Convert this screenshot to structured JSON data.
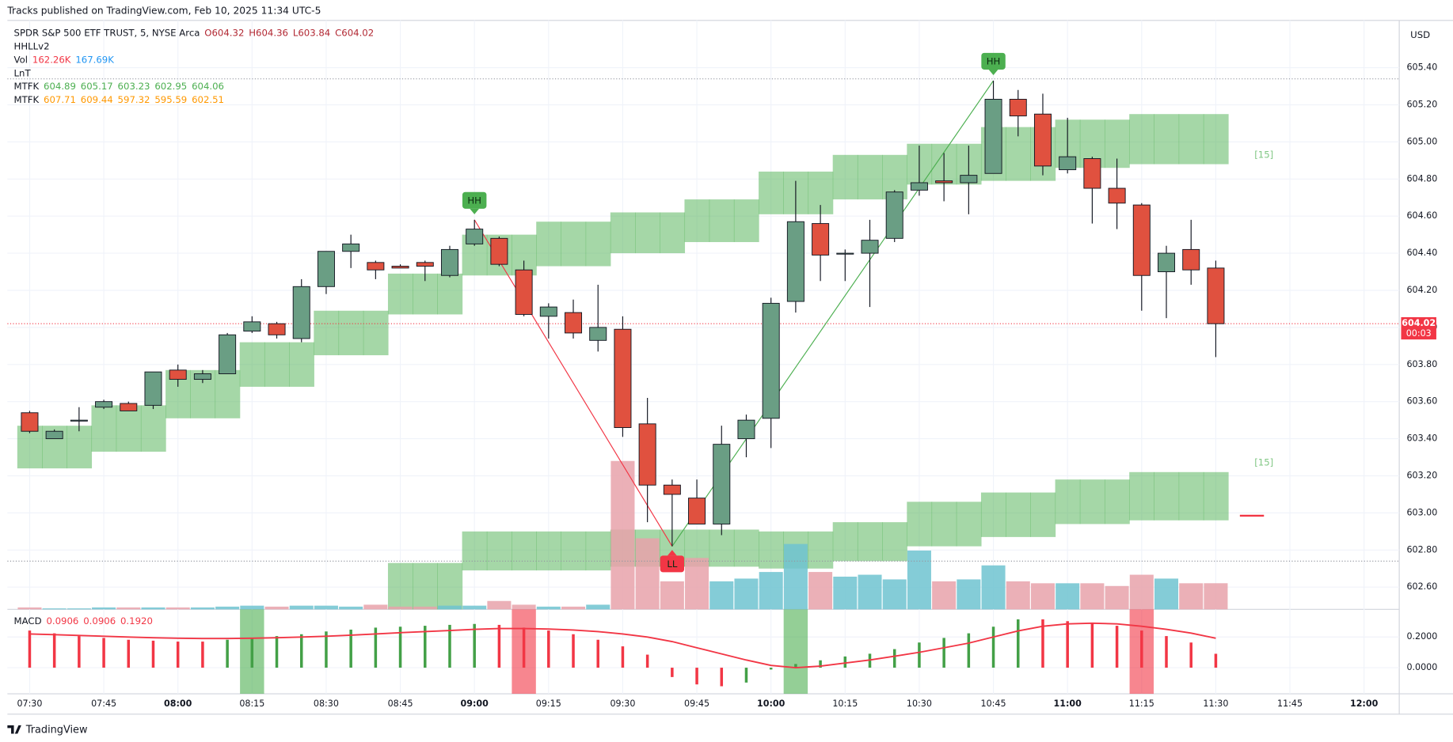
{
  "chart_data": {
    "type": "candlestick",
    "title": "Tracks published on TradingView.com, Feb 10, 2025 11:34 UTC-5",
    "currency": "USD",
    "branding": "TradingView",
    "legend": [
      {
        "name": "SPDR S&P 500 ETF TRUST, 5, NYSE Arca",
        "values": [
          "O604.32",
          "H604.36",
          "L603.84",
          "C604.02"
        ],
        "colors": [
          "#b22833",
          "#b22833",
          "#b22833",
          "#b22833"
        ]
      },
      {
        "name": "HHLLv2"
      },
      {
        "name": "Vol",
        "values": [
          "162.26K",
          "167.69K"
        ],
        "colors": [
          "#f23645",
          "#2196f3"
        ]
      },
      {
        "name": "LnT"
      },
      {
        "name": "MTFK",
        "values": [
          "604.89",
          "605.17",
          "603.23",
          "602.95",
          "604.06"
        ],
        "colors": [
          "#4caf50",
          "#4caf50",
          "#4caf50",
          "#4caf50",
          "#4caf50"
        ]
      },
      {
        "name": "MTFK",
        "values": [
          "607.71",
          "609.44",
          "597.32",
          "595.59",
          "602.51"
        ],
        "colors": [
          "#ff9800",
          "#ff9800",
          "#ff9800",
          "#ff9800",
          "#ff9800"
        ]
      }
    ],
    "categories": [
      "07:30",
      "07:35",
      "07:40",
      "07:45",
      "07:50",
      "07:55",
      "08:00",
      "08:05",
      "08:10",
      "08:15",
      "08:20",
      "08:25",
      "08:30",
      "08:35",
      "08:40",
      "08:45",
      "08:50",
      "08:55",
      "09:00",
      "09:05",
      "09:10",
      "09:15",
      "09:20",
      "09:25",
      "09:30",
      "09:35",
      "09:40",
      "09:45",
      "09:50",
      "09:55",
      "10:00",
      "10:05",
      "10:10",
      "10:15",
      "10:20",
      "10:25",
      "10:30",
      "10:35",
      "10:40",
      "10:45",
      "10:50",
      "10:55",
      "11:00",
      "11:05",
      "11:10",
      "11:15",
      "11:20",
      "11:25",
      "11:30"
    ],
    "open": [
      603.54,
      603.4,
      603.5,
      603.57,
      603.59,
      603.58,
      603.77,
      603.72,
      603.75,
      603.98,
      604.02,
      603.94,
      604.22,
      604.41,
      604.35,
      604.33,
      604.35,
      604.28,
      604.45,
      604.48,
      604.31,
      604.06,
      604.08,
      603.93,
      603.99,
      603.48,
      603.15,
      603.08,
      602.94,
      603.4,
      603.51,
      604.14,
      604.56,
      604.4,
      604.4,
      604.48,
      604.74,
      604.79,
      604.78,
      604.83,
      605.23,
      605.15,
      604.85,
      604.91,
      604.75,
      604.66,
      604.3,
      604.42,
      604.32
    ],
    "high": [
      603.55,
      603.45,
      603.57,
      603.61,
      603.6,
      603.76,
      603.8,
      603.77,
      603.97,
      604.06,
      604.03,
      604.26,
      604.41,
      604.5,
      604.36,
      604.34,
      604.36,
      604.44,
      604.58,
      604.49,
      604.36,
      604.13,
      604.15,
      604.23,
      604.06,
      603.62,
      603.18,
      603.18,
      603.47,
      603.53,
      604.16,
      604.79,
      604.66,
      604.42,
      604.58,
      604.74,
      604.98,
      604.94,
      604.98,
      605.33,
      605.28,
      605.26,
      605.13,
      604.92,
      604.91,
      604.67,
      604.44,
      604.58,
      604.36
    ],
    "low": [
      603.43,
      603.4,
      603.44,
      603.56,
      603.55,
      603.56,
      603.68,
      603.7,
      603.75,
      603.97,
      603.94,
      603.92,
      604.18,
      604.32,
      604.26,
      604.32,
      604.25,
      604.27,
      604.44,
      604.33,
      604.06,
      603.94,
      603.94,
      603.87,
      603.41,
      602.95,
      602.82,
      602.94,
      602.88,
      603.3,
      603.35,
      604.08,
      604.25,
      604.25,
      604.11,
      604.46,
      604.71,
      604.68,
      604.61,
      604.83,
      605.03,
      604.82,
      604.83,
      604.56,
      604.53,
      604.09,
      604.05,
      604.23,
      603.84
    ],
    "close": [
      603.44,
      603.44,
      603.5,
      603.6,
      603.55,
      603.76,
      603.72,
      603.75,
      603.96,
      604.03,
      603.96,
      604.22,
      604.41,
      604.45,
      604.31,
      604.32,
      604.33,
      604.42,
      604.53,
      604.34,
      604.07,
      604.11,
      603.97,
      604.0,
      603.46,
      603.15,
      603.1,
      602.94,
      603.37,
      603.5,
      604.13,
      604.57,
      604.39,
      604.4,
      604.47,
      604.73,
      604.78,
      604.78,
      604.82,
      605.23,
      605.14,
      604.87,
      604.92,
      604.75,
      604.67,
      604.28,
      604.4,
      604.31,
      604.02
    ],
    "up_color": "#6a9e84",
    "down_color": "#e0513f",
    "volume": {
      "values": [
        12,
        6,
        6,
        12,
        12,
        12,
        12,
        12,
        17,
        23,
        17,
        23,
        23,
        17,
        29,
        17,
        17,
        23,
        23,
        52,
        29,
        17,
        17,
        29,
        921,
        441,
        174,
        319,
        174,
        191,
        232,
        406,
        232,
        203,
        215,
        186,
        365,
        174,
        186,
        273,
        174,
        162,
        162,
        162,
        145,
        215,
        191,
        162,
        162.26
      ],
      "up_color": "#6fc3d0",
      "down_color": "#e8a2aa"
    },
    "bands": [
      {
        "color": "#4caf50",
        "top": [
          603.47,
          603.47,
          603.47,
          603.58,
          603.58,
          603.58,
          603.77,
          603.77,
          603.77,
          603.92,
          603.92,
          603.92,
          604.09,
          604.09,
          604.09,
          604.29,
          604.29,
          604.29,
          604.5,
          604.5,
          604.5,
          604.57,
          604.57,
          604.57,
          604.62,
          604.62,
          604.62,
          604.69,
          604.69,
          604.69,
          604.84,
          604.84,
          604.84,
          604.93,
          604.93,
          604.93,
          604.99,
          604.99,
          604.99,
          605.08,
          605.08,
          605.08,
          605.12,
          605.12,
          605.12,
          605.15,
          605.15,
          605.15,
          605.15
        ],
        "bottom": [
          603.24,
          603.24,
          603.24,
          603.33,
          603.33,
          603.33,
          603.51,
          603.51,
          603.51,
          603.68,
          603.68,
          603.68,
          603.85,
          603.85,
          603.85,
          604.07,
          604.07,
          604.07,
          604.28,
          604.28,
          604.28,
          604.33,
          604.33,
          604.33,
          604.4,
          604.4,
          604.4,
          604.46,
          604.46,
          604.46,
          604.61,
          604.61,
          604.61,
          604.69,
          604.69,
          604.69,
          604.77,
          604.77,
          604.77,
          604.79,
          604.79,
          604.79,
          604.86,
          604.86,
          604.86,
          604.88,
          604.88,
          604.88,
          604.88
        ]
      },
      {
        "color": "#4caf50",
        "top": [
          null,
          null,
          null,
          null,
          null,
          null,
          null,
          null,
          null,
          null,
          null,
          null,
          null,
          null,
          null,
          602.73,
          602.73,
          602.73,
          602.9,
          602.9,
          602.9,
          602.9,
          602.9,
          602.9,
          602.91,
          602.91,
          602.91,
          602.91,
          602.91,
          602.91,
          602.9,
          602.9,
          602.9,
          602.95,
          602.95,
          602.95,
          603.06,
          603.06,
          603.06,
          603.11,
          603.11,
          603.11,
          603.18,
          603.18,
          603.18,
          603.22,
          603.22,
          603.22,
          603.22
        ],
        "bottom": [
          null,
          null,
          null,
          null,
          null,
          null,
          null,
          null,
          null,
          null,
          null,
          null,
          null,
          null,
          null,
          602.48,
          602.48,
          602.48,
          602.69,
          602.69,
          602.69,
          602.69,
          602.69,
          602.69,
          602.71,
          602.71,
          602.71,
          602.71,
          602.71,
          602.71,
          602.7,
          602.7,
          602.7,
          602.74,
          602.74,
          602.74,
          602.82,
          602.82,
          602.82,
          602.87,
          602.87,
          602.87,
          602.94,
          602.94,
          602.94,
          602.96,
          602.96,
          602.96,
          602.96
        ]
      }
    ],
    "hlines": [
      {
        "value": 605.34,
        "color": "#9598a1"
      },
      {
        "value": 604.02,
        "color": "#f23645"
      },
      {
        "value": 602.74,
        "color": "#9598a1"
      }
    ],
    "price_label": {
      "value": 604.02,
      "label": "604.02",
      "countdown": "00:03",
      "color": "#f23645"
    },
    "annotations": [
      {
        "text": "[15]",
        "price": 604.93
      },
      {
        "text": "[15]",
        "price": 603.27
      }
    ],
    "pivots": [
      {
        "label": "HH",
        "time": "09:00",
        "price": 604.58,
        "color": "#4caf50"
      },
      {
        "label": "LL",
        "time": "09:40",
        "price": 602.82,
        "color": "#f23645"
      },
      {
        "label": "HH",
        "time": "10:45",
        "price": 605.33,
        "color": "#4caf50"
      }
    ],
    "ylim": [
      602.48,
      605.655
    ],
    "yticks": [
      {
        "value": 602.6,
        "label": "602.60"
      },
      {
        "value": 602.8,
        "label": "602.80"
      },
      {
        "value": 603.0,
        "label": "603.00"
      },
      {
        "value": 603.2,
        "label": "603.20"
      },
      {
        "value": 603.4,
        "label": "603.40"
      },
      {
        "value": 603.6,
        "label": "603.60"
      },
      {
        "value": 603.8,
        "label": "603.80"
      },
      {
        "value": 604.0,
        "label": "604.00"
      },
      {
        "value": 604.2,
        "label": "604.20"
      },
      {
        "value": 604.4,
        "label": "604.40"
      },
      {
        "value": 604.6,
        "label": "604.60"
      },
      {
        "value": 604.8,
        "label": "604.80"
      },
      {
        "value": 605.0,
        "label": "605.00"
      },
      {
        "value": 605.2,
        "label": "605.20"
      },
      {
        "value": 605.4,
        "label": "605.40"
      }
    ],
    "xticks": [
      "07:30",
      "07:45",
      "08:00",
      "08:15",
      "08:30",
      "08:45",
      "09:00",
      "09:15",
      "09:30",
      "09:45",
      "10:00",
      "10:15",
      "10:30",
      "10:45",
      "11:00",
      "11:15",
      "11:30",
      "11:45",
      "12:00"
    ],
    "grid": true,
    "macd": {
      "label": "MACD",
      "legend": [
        "0.0906",
        "0.0906",
        "0.1920"
      ],
      "histogram": [
        0.242,
        0.224,
        0.206,
        0.194,
        0.182,
        0.176,
        0.17,
        0.17,
        0.182,
        0.194,
        0.206,
        0.218,
        0.236,
        0.248,
        0.261,
        0.267,
        0.273,
        0.279,
        0.285,
        0.279,
        0.261,
        0.242,
        0.218,
        0.182,
        0.139,
        0.085,
        -0.061,
        -0.109,
        -0.121,
        -0.097,
        -0.012,
        0.024,
        0.048,
        0.073,
        0.091,
        0.121,
        0.164,
        0.194,
        0.224,
        0.267,
        0.315,
        0.315,
        0.303,
        0.291,
        0.273,
        0.242,
        0.206,
        0.164,
        0.0906
      ],
      "signal": [
        0.22,
        0.215,
        0.21,
        0.205,
        0.2,
        0.195,
        0.192,
        0.19,
        0.19,
        0.192,
        0.195,
        0.2,
        0.205,
        0.212,
        0.22,
        0.228,
        0.235,
        0.242,
        0.25,
        0.255,
        0.255,
        0.252,
        0.245,
        0.235,
        0.22,
        0.2,
        0.17,
        0.13,
        0.09,
        0.05,
        0.015,
        0.0,
        0.01,
        0.03,
        0.05,
        0.075,
        0.1,
        0.13,
        0.16,
        0.2,
        0.24,
        0.27,
        0.285,
        0.29,
        0.285,
        0.27,
        0.25,
        0.225,
        0.192
      ],
      "up_color": "#43a047",
      "down_color": "#f23645",
      "signal_color": "#f23645",
      "signals": [
        {
          "time": "08:15",
          "color": "#4caf50"
        },
        {
          "time": "09:10",
          "color": "#f23645"
        },
        {
          "time": "10:05",
          "color": "#4caf50"
        },
        {
          "time": "11:15",
          "color": "#f23645"
        }
      ],
      "ylim": [
        -0.17,
        0.38
      ],
      "yticks": [
        {
          "value": 0.0,
          "label": "0.0000"
        },
        {
          "value": 0.2,
          "label": "0.2000"
        }
      ]
    }
  }
}
